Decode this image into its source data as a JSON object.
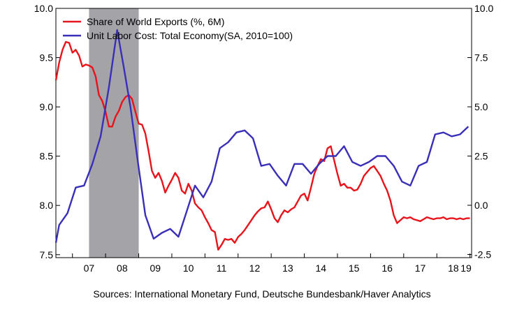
{
  "source_note": "Sources:  International Monetary Fund, Deutsche Bundesbank/Haver Analytics",
  "chart_data": {
    "type": "line",
    "grid": false,
    "legend_position": "top-left",
    "x_ticks": [
      "07",
      "08",
      "09",
      "10",
      "11",
      "12",
      "13",
      "14",
      "15",
      "16",
      "17",
      "18",
      "19"
    ],
    "x_range": [
      2006.5,
      2019.05
    ],
    "y_left": {
      "range": [
        7.47,
        10.0
      ],
      "ticks": [
        "7.5",
        "8.0",
        "8.5",
        "9.0",
        "9.5",
        "10.0"
      ]
    },
    "y_right": {
      "range": [
        -2.66,
        10.0
      ],
      "ticks": [
        "-2.5",
        "0.0",
        "2.5",
        "5.0",
        "7.5",
        "10.0"
      ]
    },
    "shading": [
      {
        "from": 2007.5,
        "to": 2009.0,
        "color": "#a3a3a8"
      }
    ],
    "series": [
      {
        "name": "Share of World Exports (%, 6M)",
        "axis": "left",
        "color": "#e8141b",
        "x": [
          2006.5,
          2006.6,
          2006.7,
          2006.8,
          2006.9,
          2007.0,
          2007.1,
          2007.2,
          2007.3,
          2007.4,
          2007.5,
          2007.6,
          2007.7,
          2007.8,
          2007.9,
          2008.0,
          2008.1,
          2008.2,
          2008.3,
          2008.4,
          2008.5,
          2008.6,
          2008.7,
          2008.8,
          2008.9,
          2009.0,
          2009.1,
          2009.2,
          2009.3,
          2009.4,
          2009.5,
          2009.6,
          2009.7,
          2009.8,
          2009.9,
          2010.0,
          2010.1,
          2010.2,
          2010.3,
          2010.4,
          2010.5,
          2010.6,
          2010.7,
          2010.8,
          2010.9,
          2011.0,
          2011.1,
          2011.2,
          2011.3,
          2011.4,
          2011.5,
          2011.6,
          2011.7,
          2011.8,
          2011.9,
          2012.0,
          2012.1,
          2012.2,
          2012.3,
          2012.4,
          2012.5,
          2012.6,
          2012.7,
          2012.8,
          2012.9,
          2013.0,
          2013.1,
          2013.2,
          2013.3,
          2013.4,
          2013.5,
          2013.6,
          2013.7,
          2013.8,
          2013.9,
          2014.0,
          2014.1,
          2014.2,
          2014.3,
          2014.4,
          2014.5,
          2014.6,
          2014.7,
          2014.8,
          2014.9,
          2015.0,
          2015.1,
          2015.2,
          2015.3,
          2015.4,
          2015.5,
          2015.6,
          2015.7,
          2015.8,
          2015.9,
          2016.0,
          2016.1,
          2016.2,
          2016.3,
          2016.4,
          2016.5,
          2016.6,
          2016.7,
          2016.8,
          2016.9,
          2017.0,
          2017.1,
          2017.2,
          2017.3,
          2017.4,
          2017.5,
          2017.6,
          2017.7,
          2017.8,
          2017.9,
          2018.0,
          2018.1,
          2018.2,
          2018.3,
          2018.4,
          2018.5,
          2018.6,
          2018.7,
          2018.8,
          2018.9,
          2019.0
        ],
        "values": [
          9.27,
          9.45,
          9.58,
          9.66,
          9.65,
          9.55,
          9.58,
          9.52,
          9.41,
          9.43,
          9.42,
          9.4,
          9.31,
          9.12,
          9.06,
          8.95,
          8.8,
          8.8,
          8.9,
          8.96,
          9.05,
          9.1,
          9.12,
          9.08,
          8.95,
          8.83,
          8.82,
          8.73,
          8.55,
          8.35,
          8.28,
          8.33,
          8.25,
          8.13,
          8.2,
          8.26,
          8.33,
          8.28,
          8.15,
          8.12,
          8.22,
          8.15,
          8.02,
          7.98,
          7.95,
          7.88,
          7.82,
          7.75,
          7.73,
          7.55,
          7.6,
          7.66,
          7.65,
          7.66,
          7.62,
          7.68,
          7.71,
          7.75,
          7.8,
          7.85,
          7.9,
          7.94,
          7.97,
          7.98,
          8.04,
          7.96,
          7.87,
          7.83,
          7.9,
          7.95,
          7.93,
          7.96,
          7.98,
          8.04,
          8.1,
          8.12,
          8.05,
          8.18,
          8.32,
          8.4,
          8.47,
          8.45,
          8.58,
          8.6,
          8.46,
          8.32,
          8.2,
          8.22,
          8.18,
          8.18,
          8.15,
          8.16,
          8.22,
          8.3,
          8.34,
          8.38,
          8.4,
          8.35,
          8.3,
          8.22,
          8.15,
          8.05,
          7.9,
          7.82,
          7.85,
          7.88,
          7.87,
          7.88,
          7.86,
          7.85,
          7.84,
          7.86,
          7.88,
          7.87,
          7.86,
          7.87,
          7.87,
          7.88,
          7.86,
          7.87,
          7.87,
          7.86,
          7.87,
          7.86,
          7.87,
          7.87
        ]
      },
      {
        "name": "Unit Labor Cost: Total Economy(SA, 2010=100)",
        "axis": "right",
        "color": "#3a2fb8",
        "x": [
          2006.5,
          2006.6,
          2006.85,
          2007.1,
          2007.35,
          2007.6,
          2007.85,
          2008.1,
          2008.35,
          2008.55,
          2008.75,
          2008.95,
          2009.2,
          2009.45,
          2009.7,
          2009.95,
          2010.2,
          2010.45,
          2010.7,
          2010.95,
          2011.2,
          2011.45,
          2011.7,
          2011.95,
          2012.2,
          2012.45,
          2012.7,
          2012.95,
          2013.2,
          2013.45,
          2013.7,
          2013.95,
          2014.2,
          2014.45,
          2014.7,
          2014.95,
          2015.2,
          2015.45,
          2015.7,
          2015.95,
          2016.2,
          2016.45,
          2016.7,
          2016.95,
          2017.2,
          2017.45,
          2017.7,
          2017.95,
          2018.2,
          2018.45,
          2018.7,
          2018.95
        ],
        "values": [
          -1.9,
          -1.0,
          -0.4,
          0.9,
          1.0,
          2.1,
          3.5,
          6.0,
          8.9,
          7.0,
          5.0,
          2.5,
          -0.5,
          -1.7,
          -1.4,
          -1.2,
          -1.6,
          -0.3,
          1.0,
          0.4,
          1.2,
          2.9,
          3.2,
          3.7,
          3.8,
          3.4,
          2.0,
          2.1,
          1.5,
          1.0,
          2.1,
          2.1,
          1.6,
          2.1,
          2.5,
          2.5,
          3.0,
          2.2,
          2.0,
          2.2,
          2.5,
          2.5,
          2.0,
          1.2,
          1.0,
          2.0,
          2.2,
          3.6,
          3.7,
          3.5,
          3.6,
          4.0
        ]
      }
    ]
  }
}
